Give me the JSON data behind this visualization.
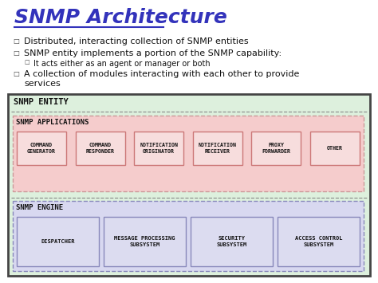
{
  "title": "SNMP Architecture",
  "title_color": "#3333bb",
  "bg_color": "#ffffff",
  "bullet1": "Distributed, interacting collection of SNMP entities",
  "bullet2": "SNMP entity implements a portion of the SNMP capability:",
  "bullet3": "It acts either as an agent or manager or both",
  "bullet4a": "A collection of modules interacting with each other to provide",
  "bullet4b": "services",
  "snmp_entity_bg": "#ddf0dd",
  "snmp_entity_border": "#444444",
  "snmp_entity_label": "SNMP ENTITY",
  "snmp_apps_bg": "#f5cccc",
  "snmp_apps_label": "SNMP APPLICATIONS",
  "app_boxes": [
    "COMMAND\nGENERATOR",
    "COMMAND\nRESPONDER",
    "NOTIFICATION\nORIGINATOR",
    "NOTIFICATION\nRECEIVER",
    "PROXY\nFORWARDER",
    "OTHER"
  ],
  "app_box_fill": "#f7dddd",
  "app_box_border": "#cc7777",
  "snmp_engine_bg": "#d8d8f0",
  "snmp_engine_label": "SNMP ENGINE",
  "engine_boxes": [
    "DISPATCHER",
    "MESSAGE PROCESSING\nSUBSYSTEM",
    "SECURITY\nSUBSYSTEM",
    "ACCESS CONTROL\nSUBSYSTEM"
  ],
  "engine_box_fill": "#dcdcf0",
  "engine_box_border": "#8888bb"
}
